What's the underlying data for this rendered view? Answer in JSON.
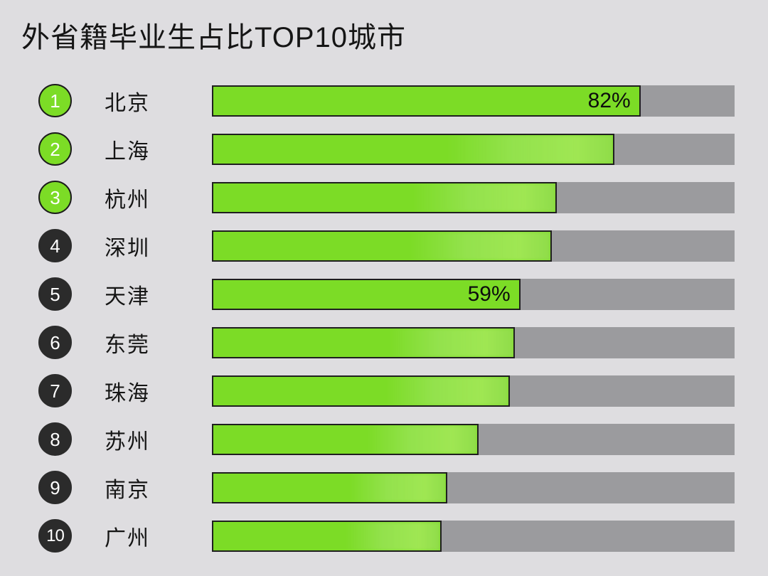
{
  "title": "外省籍毕业生占比TOP10城市",
  "colors": {
    "background": "#dedde0",
    "bar_fill": "#7cdc26",
    "bar_border": "#1f1f1f",
    "track": "#9b9b9e",
    "badge_top3": "#7cdc26",
    "badge_rest": "#2b2b2b",
    "badge_number": "#ffffff",
    "text": "#151515"
  },
  "chart_data": {
    "type": "bar",
    "orientation": "horizontal",
    "title": "外省籍毕业生占比TOP10城市",
    "categories": [
      "北京",
      "上海",
      "杭州",
      "深圳",
      "天津",
      "东莞",
      "珠海",
      "苏州",
      "南京",
      "广州"
    ],
    "values": [
      82,
      77,
      66,
      65,
      59,
      58,
      57,
      51,
      45,
      44
    ],
    "unit": "%",
    "value_axis_range": [
      0,
      100
    ],
    "grid": false,
    "legend": false,
    "visible_value_labels": [
      "82%",
      "59%"
    ],
    "rows": [
      {
        "rank": "1",
        "city": "北京",
        "value": 82,
        "label": "82%"
      },
      {
        "rank": "2",
        "city": "上海",
        "value": 77,
        "label": ""
      },
      {
        "rank": "3",
        "city": "杭州",
        "value": 66,
        "label": ""
      },
      {
        "rank": "4",
        "city": "深圳",
        "value": 65,
        "label": ""
      },
      {
        "rank": "5",
        "city": "天津",
        "value": 59,
        "label": "59%"
      },
      {
        "rank": "6",
        "city": "东莞",
        "value": 58,
        "label": ""
      },
      {
        "rank": "7",
        "city": "珠海",
        "value": 57,
        "label": ""
      },
      {
        "rank": "8",
        "city": "苏州",
        "value": 51,
        "label": ""
      },
      {
        "rank": "9",
        "city": "南京",
        "value": 45,
        "label": ""
      },
      {
        "rank": "10",
        "city": "广州",
        "value": 44,
        "label": ""
      }
    ]
  }
}
